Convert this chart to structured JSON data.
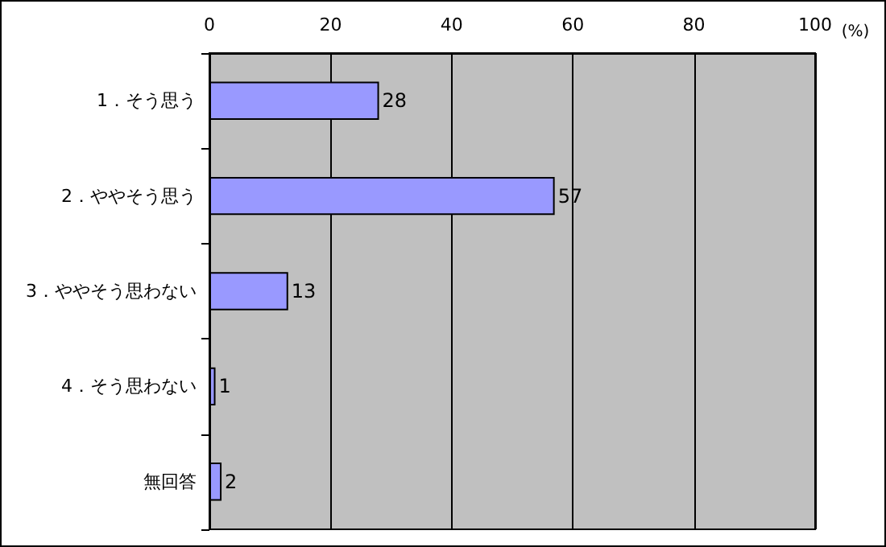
{
  "chart_data": {
    "type": "bar",
    "orientation": "horizontal",
    "xlabel": "(%)",
    "categories": [
      "1．そう思う",
      "2．ややそう思う",
      "3．ややそう思わない",
      "4．そう思わない",
      "無回答"
    ],
    "values": [
      28,
      57,
      13,
      1,
      2
    ],
    "color": "#9999ff",
    "xlim": [
      0,
      100
    ],
    "xticks": [
      0,
      20,
      40,
      60,
      80,
      100
    ],
    "grid": "x",
    "data_labels": true
  }
}
